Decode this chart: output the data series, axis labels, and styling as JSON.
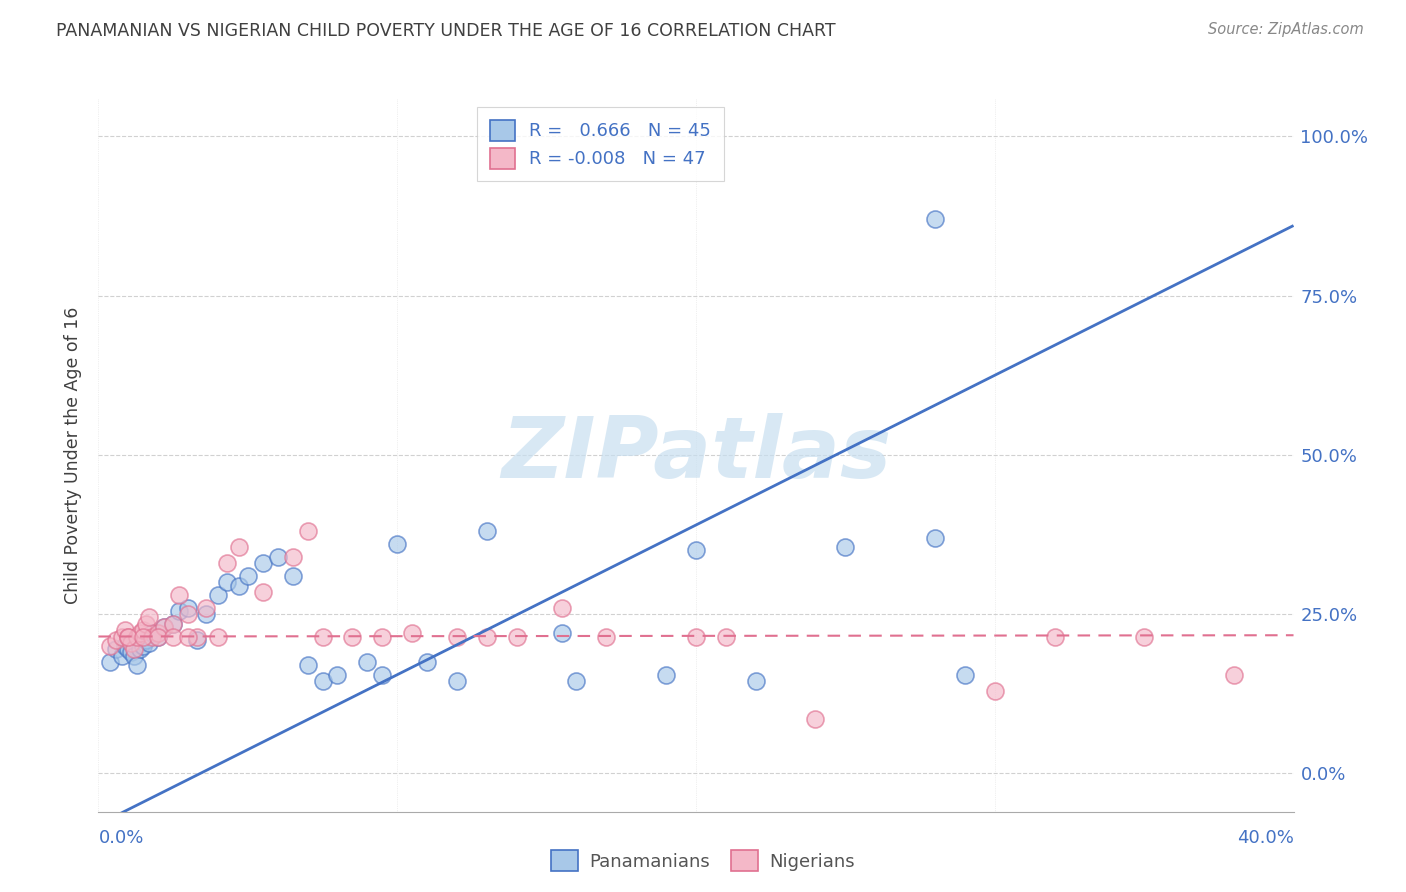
{
  "title": "PANAMANIAN VS NIGERIAN CHILD POVERTY UNDER THE AGE OF 16 CORRELATION CHART",
  "source": "Source: ZipAtlas.com",
  "ylabel": "Child Poverty Under the Age of 16",
  "ytick_labels": [
    "0.0%",
    "25.0%",
    "50.0%",
    "75.0%",
    "100.0%"
  ],
  "ytick_values": [
    0.0,
    0.25,
    0.5,
    0.75,
    1.0
  ],
  "xtick_labels": [
    "0.0%",
    "40.0%"
  ],
  "xlim": [
    0.0,
    0.4
  ],
  "ylim": [
    -0.06,
    1.06
  ],
  "watermark": "ZIPatlas",
  "legend_line1": "R =   0.666   N = 45",
  "legend_line2": "R = -0.008   N = 47",
  "legend_labels": [
    "Panamanians",
    "Nigerians"
  ],
  "blue_fill": "#a8c8e8",
  "blue_edge": "#4472c4",
  "pink_fill": "#f4b8c8",
  "pink_edge": "#e07090",
  "blue_line": "#4472c4",
  "pink_line": "#e07090",
  "grid_color": "#cccccc",
  "title_color": "#404040",
  "source_color": "#888888",
  "axis_label_color": "#404040",
  "tick_color": "#4472c4",
  "watermark_color": "#c8dff0",
  "blue_slope": 2.35,
  "blue_intercept": -0.08,
  "pink_slope": 0.005,
  "pink_intercept": 0.215,
  "pan_x": [
    0.004,
    0.006,
    0.008,
    0.009,
    0.01,
    0.011,
    0.012,
    0.013,
    0.014,
    0.015,
    0.016,
    0.017,
    0.018,
    0.02,
    0.022,
    0.025,
    0.027,
    0.03,
    0.033,
    0.036,
    0.04,
    0.043,
    0.047,
    0.05,
    0.055,
    0.06,
    0.065,
    0.07,
    0.075,
    0.08,
    0.09,
    0.095,
    0.1,
    0.11,
    0.12,
    0.13,
    0.155,
    0.16,
    0.19,
    0.2,
    0.22,
    0.25,
    0.28,
    0.29,
    0.28
  ],
  "pan_y": [
    0.175,
    0.195,
    0.185,
    0.2,
    0.195,
    0.19,
    0.185,
    0.17,
    0.195,
    0.2,
    0.21,
    0.205,
    0.22,
    0.215,
    0.23,
    0.235,
    0.255,
    0.26,
    0.21,
    0.25,
    0.28,
    0.3,
    0.295,
    0.31,
    0.33,
    0.34,
    0.31,
    0.17,
    0.145,
    0.155,
    0.175,
    0.155,
    0.36,
    0.175,
    0.145,
    0.38,
    0.22,
    0.145,
    0.155,
    0.35,
    0.145,
    0.355,
    0.37,
    0.155,
    0.87
  ],
  "nig_x": [
    0.004,
    0.006,
    0.008,
    0.009,
    0.01,
    0.011,
    0.012,
    0.013,
    0.014,
    0.015,
    0.016,
    0.017,
    0.018,
    0.02,
    0.022,
    0.025,
    0.027,
    0.03,
    0.033,
    0.036,
    0.04,
    0.043,
    0.047,
    0.055,
    0.065,
    0.075,
    0.085,
    0.095,
    0.105,
    0.12,
    0.13,
    0.14,
    0.155,
    0.17,
    0.2,
    0.21,
    0.24,
    0.3,
    0.32,
    0.35,
    0.01,
    0.015,
    0.02,
    0.025,
    0.03,
    0.07,
    0.38
  ],
  "nig_y": [
    0.2,
    0.21,
    0.215,
    0.225,
    0.215,
    0.205,
    0.195,
    0.215,
    0.22,
    0.225,
    0.235,
    0.245,
    0.215,
    0.22,
    0.23,
    0.235,
    0.28,
    0.25,
    0.215,
    0.26,
    0.215,
    0.33,
    0.355,
    0.285,
    0.34,
    0.215,
    0.215,
    0.215,
    0.22,
    0.215,
    0.215,
    0.215,
    0.26,
    0.215,
    0.215,
    0.215,
    0.085,
    0.13,
    0.215,
    0.215,
    0.215,
    0.215,
    0.215,
    0.215,
    0.215,
    0.38,
    0.155
  ]
}
